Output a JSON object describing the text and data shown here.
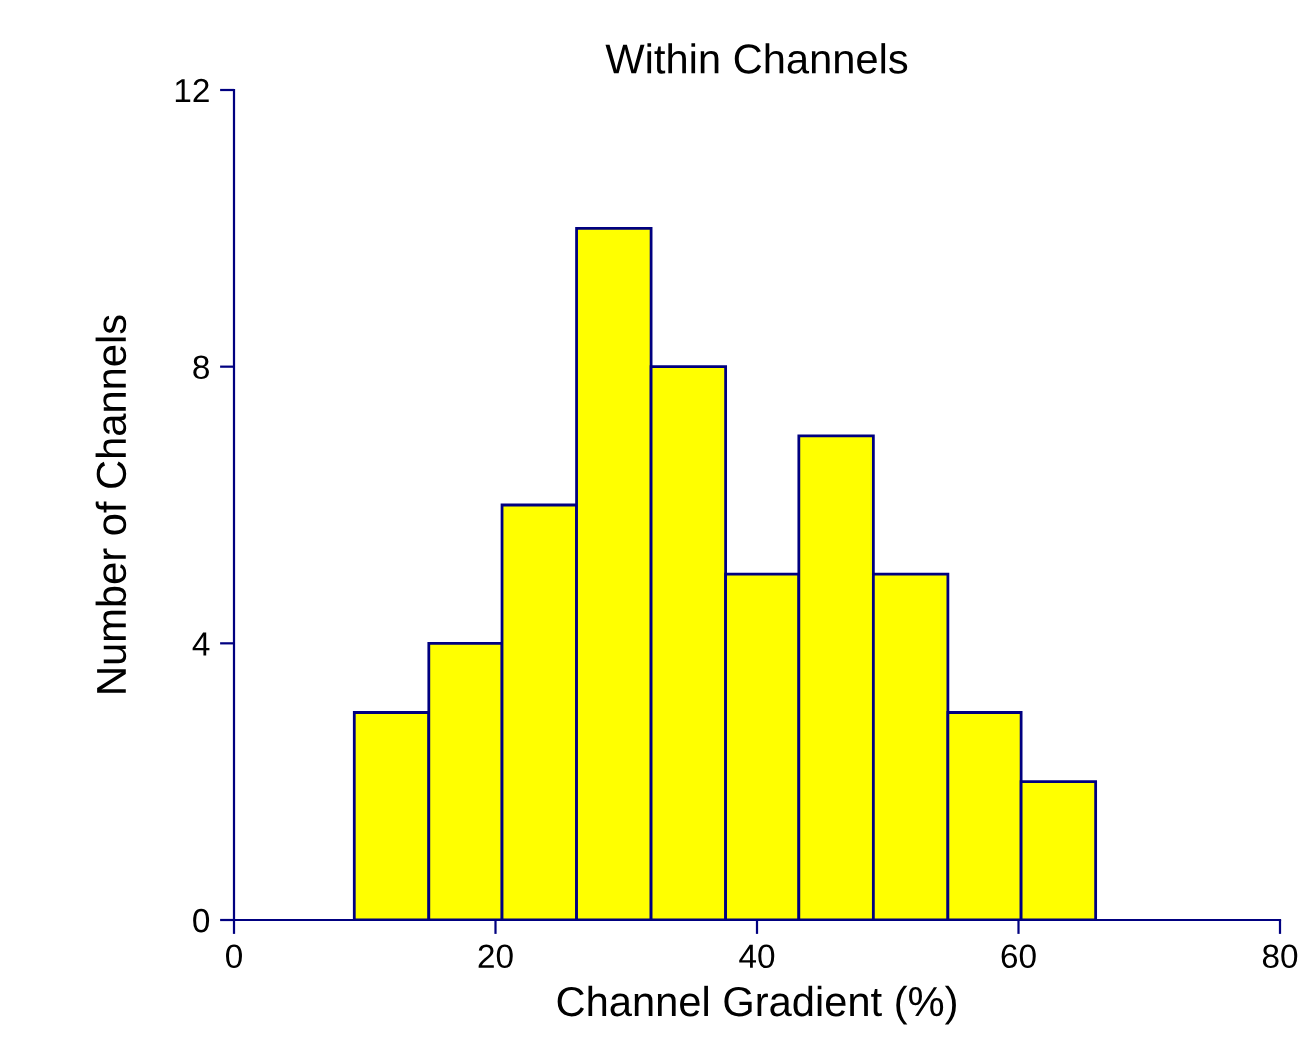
{
  "chart_data": {
    "type": "histogram",
    "title": "Within Channels",
    "xlabel": "Channel Gradient (%)",
    "ylabel": "Number of Channels",
    "bins": [
      9.2,
      14.9,
      20.5,
      26.2,
      31.9,
      37.6,
      43.2,
      48.9,
      54.6,
      60.2,
      65.9
    ],
    "values": [
      3,
      4,
      6,
      10,
      8,
      5,
      7,
      5,
      3,
      2
    ],
    "color": "#ffff00",
    "xlim": [
      0,
      80
    ],
    "xticks": [
      0,
      20,
      40,
      60,
      80
    ],
    "ylim": [
      0,
      12
    ],
    "yticks": [
      0,
      4,
      8,
      12
    ],
    "grid": false
  }
}
